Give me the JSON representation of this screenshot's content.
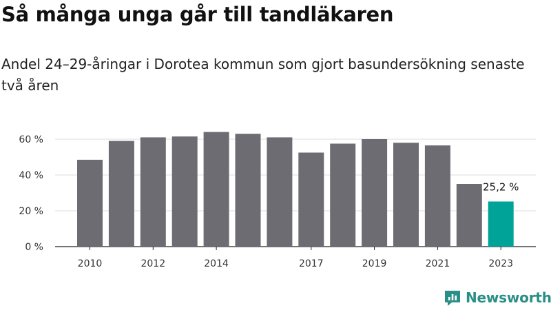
{
  "title": "Så många unga går till tandläkaren",
  "subtitle": "Andel 24–29-åringar i Dorotea kommun som gjort basundersökning senaste två åren",
  "brand": "Newsworthy",
  "colors": {
    "bar": "#6d6c72",
    "highlight": "#00a398",
    "grid": "#dddddd",
    "brand": "#2a8f86"
  },
  "chart_data": {
    "type": "bar",
    "categories": [
      "2010",
      "2011",
      "2012",
      "2013",
      "2014",
      "2015",
      "2016",
      "2017",
      "2018",
      "2019",
      "2020",
      "2021",
      "2022",
      "2023"
    ],
    "values": [
      48.5,
      59,
      61,
      61.5,
      64,
      63,
      61,
      52.5,
      57.5,
      60,
      58,
      56.5,
      35,
      25.2
    ],
    "x_tick_labels": [
      "2010",
      "",
      "2012",
      "",
      "2014",
      "",
      "",
      "2017",
      "",
      "2019",
      "",
      "2021",
      "",
      "2023"
    ],
    "y_ticks": [
      0,
      20,
      40,
      60
    ],
    "y_tick_labels": [
      "0 %",
      "20 %",
      "40 %",
      "60 %"
    ],
    "ylim": [
      0,
      70
    ],
    "grid": true,
    "highlight_index": 13,
    "data_label": "25,2 %"
  }
}
